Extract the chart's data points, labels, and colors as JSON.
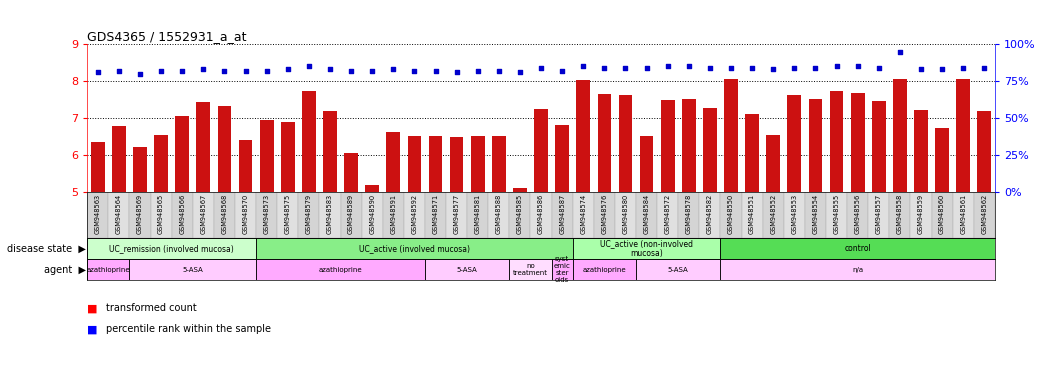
{
  "title": "GDS4365 / 1552931_a_at",
  "samples": [
    "GSM948563",
    "GSM948564",
    "GSM948569",
    "GSM948565",
    "GSM948566",
    "GSM948567",
    "GSM948568",
    "GSM948570",
    "GSM948573",
    "GSM948575",
    "GSM948579",
    "GSM948583",
    "GSM948589",
    "GSM948590",
    "GSM948591",
    "GSM948592",
    "GSM948571",
    "GSM948577",
    "GSM948581",
    "GSM948588",
    "GSM948585",
    "GSM948586",
    "GSM948587",
    "GSM948574",
    "GSM948576",
    "GSM948580",
    "GSM948584",
    "GSM948572",
    "GSM948578",
    "GSM948582",
    "GSM948550",
    "GSM948551",
    "GSM948552",
    "GSM948553",
    "GSM948554",
    "GSM948555",
    "GSM948556",
    "GSM948557",
    "GSM948558",
    "GSM948559",
    "GSM948560",
    "GSM948561",
    "GSM948562"
  ],
  "bar_values": [
    6.35,
    6.78,
    6.22,
    6.55,
    7.05,
    7.42,
    7.32,
    6.4,
    6.95,
    6.88,
    7.72,
    7.18,
    6.05,
    5.18,
    6.62,
    6.52,
    6.52,
    6.48,
    6.52,
    6.52,
    5.1,
    7.25,
    6.82,
    8.02,
    7.65,
    7.62,
    6.52,
    7.48,
    7.52,
    7.28,
    8.05,
    7.12,
    6.55,
    7.62,
    7.52,
    7.72,
    7.68,
    7.45,
    8.05,
    7.22,
    6.72,
    8.05,
    7.18
  ],
  "pct_values": [
    81,
    82,
    80,
    82,
    82,
    83,
    82,
    82,
    82,
    83,
    85,
    83,
    82,
    82,
    83,
    82,
    82,
    81,
    82,
    82,
    81,
    84,
    82,
    85,
    84,
    84,
    84,
    85,
    85,
    84,
    84,
    84,
    83,
    84,
    84,
    85,
    85,
    84,
    95,
    83,
    83,
    84,
    84
  ],
  "disease_groups": [
    {
      "label": "UC_remission (involved mucosa)",
      "start": 0,
      "end": 7,
      "color": "#ccffcc"
    },
    {
      "label": "UC_active (involved mucosa)",
      "start": 8,
      "end": 22,
      "color": "#88ee88"
    },
    {
      "label": "UC_active (non-involved\nmucosa)",
      "start": 23,
      "end": 29,
      "color": "#aaffaa"
    },
    {
      "label": "control",
      "start": 30,
      "end": 42,
      "color": "#55dd55"
    }
  ],
  "agent_groups": [
    {
      "label": "azathioprine",
      "start": 0,
      "end": 1,
      "color": "#ffaaff"
    },
    {
      "label": "5-ASA",
      "start": 2,
      "end": 7,
      "color": "#ffccff"
    },
    {
      "label": "azathioprine",
      "start": 8,
      "end": 15,
      "color": "#ffaaff"
    },
    {
      "label": "5-ASA",
      "start": 16,
      "end": 19,
      "color": "#ffccff"
    },
    {
      "label": "no\ntreatment",
      "start": 20,
      "end": 21,
      "color": "#ffddff"
    },
    {
      "label": "syst\nemic\nster\noids",
      "start": 22,
      "end": 22,
      "color": "#ffaaff"
    },
    {
      "label": "azathioprine",
      "start": 23,
      "end": 25,
      "color": "#ffaaff"
    },
    {
      "label": "5-ASA",
      "start": 26,
      "end": 29,
      "color": "#ffccff"
    },
    {
      "label": "n/a",
      "start": 30,
      "end": 42,
      "color": "#ffccff"
    }
  ],
  "ylim": [
    5,
    9
  ],
  "yticks": [
    5,
    6,
    7,
    8,
    9
  ],
  "bar_color": "#cc1111",
  "dot_color": "#0000cc",
  "plot_bg": "#ffffff",
  "pct_ylim": [
    0,
    100
  ],
  "pct_yticks": [
    0,
    25,
    50,
    75,
    100
  ],
  "pct_yticklabels": [
    "0%",
    "25%",
    "50%",
    "75%",
    "100%"
  ]
}
